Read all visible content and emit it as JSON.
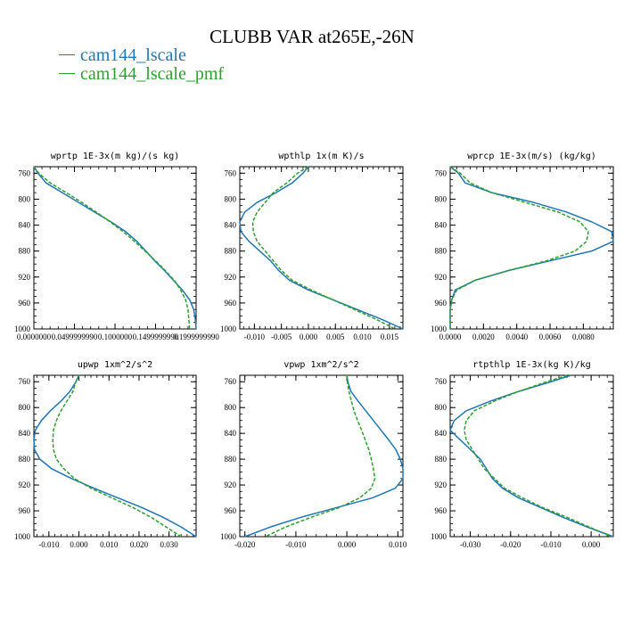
{
  "title": "CLUBB VAR at265E,-26N",
  "legend": [
    {
      "label": "cam144_lscale",
      "color": "#1f77b4"
    },
    {
      "label": "cam144_lscale_pmf",
      "color": "#2ca02c"
    }
  ],
  "chart_data": [
    {
      "type": "line",
      "title": "wprtp  1E-3x(m kg)/(s kg)",
      "ylim": [
        1000,
        750
      ],
      "yticks": [
        760,
        800,
        840,
        880,
        920,
        960,
        1000
      ],
      "xlim": [
        0.0,
        0.2
      ],
      "xticks": [
        0.0,
        0.05,
        0.1,
        0.15,
        0.2
      ],
      "xtick_labels": [
        "0.0000000",
        "0.0499999990",
        "0.1000000",
        "0.1499999990",
        "0.1999999990"
      ],
      "pressure": [
        750,
        760,
        775,
        790,
        805,
        820,
        835,
        850,
        865,
        880,
        895,
        910,
        925,
        940,
        955,
        970,
        985,
        1000
      ],
      "series": [
        {
          "name": "cam144_lscale",
          "color": "#1f77b4",
          "dash": "",
          "values": [
            0.0,
            0.005,
            0.015,
            0.035,
            0.055,
            0.075,
            0.095,
            0.113,
            0.127,
            0.138,
            0.149,
            0.161,
            0.172,
            0.183,
            0.192,
            0.197,
            0.199,
            0.2
          ]
        },
        {
          "name": "cam144_lscale_pmf",
          "color": "#2ca02c",
          "dash": "4,2",
          "values": [
            0.0,
            0.006,
            0.02,
            0.04,
            0.059,
            0.077,
            0.094,
            0.11,
            0.124,
            0.137,
            0.15,
            0.162,
            0.173,
            0.181,
            0.187,
            0.19,
            0.191,
            0.192
          ]
        }
      ]
    },
    {
      "type": "line",
      "title": "wpthlp  1x(m K)/s",
      "ylim": [
        1000,
        750
      ],
      "yticks": [
        760,
        800,
        840,
        880,
        920,
        960,
        1000
      ],
      "xlim": [
        -0.0127,
        0.0175
      ],
      "xticks": [
        -0.01,
        -0.005,
        0.0,
        0.005,
        0.01,
        0.015
      ],
      "xtick_labels": [
        "-0.010",
        "-0.005",
        "0.000",
        "0.005",
        "0.010",
        "0.015"
      ],
      "pressure": [
        750,
        760,
        775,
        790,
        805,
        820,
        835,
        850,
        865,
        880,
        895,
        910,
        925,
        940,
        955,
        970,
        985,
        1000
      ],
      "series": [
        {
          "name": "cam144_lscale",
          "color": "#1f77b4",
          "dash": "",
          "values": [
            0.0,
            -0.001,
            -0.003,
            -0.006,
            -0.0095,
            -0.0118,
            -0.0127,
            -0.0125,
            -0.011,
            -0.009,
            -0.007,
            -0.0055,
            -0.0035,
            0.0,
            0.0045,
            0.009,
            0.0135,
            0.0175
          ]
        },
        {
          "name": "cam144_lscale_pmf",
          "color": "#2ca02c",
          "dash": "4,2",
          "values": [
            0.0,
            -0.002,
            -0.004,
            -0.0065,
            -0.008,
            -0.0095,
            -0.0103,
            -0.0102,
            -0.0095,
            -0.008,
            -0.0065,
            -0.005,
            -0.003,
            0.0005,
            0.0045,
            0.0085,
            0.0125,
            0.016
          ]
        }
      ]
    },
    {
      "type": "line",
      "title": "wprcp  1E-3x(m/s) (kg/kg)",
      "ylim": [
        1000,
        750
      ],
      "yticks": [
        760,
        800,
        840,
        880,
        920,
        960,
        1000
      ],
      "xlim": [
        0.0,
        0.0098
      ],
      "xticks": [
        0.0,
        0.002,
        0.004,
        0.006,
        0.008
      ],
      "xtick_labels": [
        "0.0000",
        "0.0020",
        "0.0040",
        "0.0060",
        "0.0080"
      ],
      "pressure": [
        750,
        760,
        775,
        790,
        805,
        820,
        835,
        850,
        865,
        880,
        895,
        910,
        925,
        940,
        955,
        970,
        985,
        1000
      ],
      "series": [
        {
          "name": "cam144_lscale",
          "color": "#1f77b4",
          "dash": "",
          "values": [
            0.0,
            0.0005,
            0.0009,
            0.0025,
            0.005,
            0.007,
            0.0085,
            0.0097,
            0.0098,
            0.0085,
            0.006,
            0.0035,
            0.0015,
            0.0003,
            0.0001,
            0.0,
            0.0,
            0.0
          ]
        },
        {
          "name": "cam144_lscale_pmf",
          "color": "#2ca02c",
          "dash": "4,2",
          "values": [
            0.0,
            0.0006,
            0.0012,
            0.0025,
            0.0045,
            0.0065,
            0.0078,
            0.0083,
            0.0082,
            0.0075,
            0.0058,
            0.0035,
            0.0015,
            0.0004,
            0.0001,
            0.0,
            0.0,
            0.0
          ]
        }
      ]
    },
    {
      "type": "line",
      "title": "upwp  1xm^2/s^2",
      "ylim": [
        1000,
        750
      ],
      "yticks": [
        760,
        800,
        840,
        880,
        920,
        960,
        1000
      ],
      "xlim": [
        -0.015,
        0.039
      ],
      "xticks": [
        -0.01,
        0.0,
        0.01,
        0.02,
        0.03
      ],
      "xtick_labels": [
        "-0.010",
        "0.000",
        "0.010",
        "0.020",
        "0.030"
      ],
      "pressure": [
        750,
        760,
        775,
        790,
        805,
        820,
        835,
        850,
        865,
        880,
        895,
        910,
        925,
        940,
        955,
        970,
        985,
        1000
      ],
      "series": [
        {
          "name": "cam144_lscale",
          "color": "#1f77b4",
          "dash": "",
          "values": [
            0.0,
            -0.001,
            -0.003,
            -0.006,
            -0.0095,
            -0.0125,
            -0.0145,
            -0.015,
            -0.0148,
            -0.013,
            -0.009,
            -0.0025,
            0.005,
            0.013,
            0.021,
            0.028,
            0.034,
            0.039
          ]
        },
        {
          "name": "cam144_lscale_pmf",
          "color": "#2ca02c",
          "dash": "4,2",
          "values": [
            0.0,
            -0.001,
            -0.002,
            -0.004,
            -0.006,
            -0.0075,
            -0.0085,
            -0.0087,
            -0.0085,
            -0.0075,
            -0.005,
            -0.0015,
            0.004,
            0.011,
            0.018,
            0.024,
            0.029,
            0.034
          ]
        }
      ]
    },
    {
      "type": "line",
      "title": "vpwp  1xm^2/s^2",
      "ylim": [
        1000,
        750
      ],
      "yticks": [
        760,
        800,
        840,
        880,
        920,
        960,
        1000
      ],
      "xlim": [
        -0.021,
        0.011
      ],
      "xticks": [
        -0.02,
        -0.01,
        0.0,
        0.01
      ],
      "xtick_labels": [
        "-0.020",
        "-0.010",
        "0.000",
        "0.010"
      ],
      "pressure": [
        750,
        760,
        775,
        790,
        805,
        820,
        835,
        850,
        865,
        880,
        895,
        910,
        925,
        940,
        955,
        970,
        985,
        1000
      ],
      "series": [
        {
          "name": "cam144_lscale",
          "color": "#1f77b4",
          "dash": "",
          "values": [
            0.0,
            0.0002,
            0.0008,
            0.0022,
            0.0037,
            0.0052,
            0.0067,
            0.0082,
            0.0096,
            0.0105,
            0.011,
            0.011,
            0.0095,
            0.005,
            -0.002,
            -0.009,
            -0.015,
            -0.02
          ]
        },
        {
          "name": "cam144_lscale_pmf",
          "color": "#2ca02c",
          "dash": "4,2",
          "values": [
            0.0,
            0.0001,
            0.0004,
            0.0009,
            0.0014,
            0.0021,
            0.0029,
            0.0036,
            0.0043,
            0.0048,
            0.0052,
            0.0055,
            0.0048,
            0.0025,
            -0.0015,
            -0.007,
            -0.012,
            -0.016
          ]
        }
      ]
    },
    {
      "type": "line",
      "title": "rtpthlp  1E-3x(kg K)/kg",
      "ylim": [
        1000,
        750
      ],
      "yticks": [
        760,
        800,
        840,
        880,
        920,
        960,
        1000
      ],
      "xlim": [
        -0.035,
        0.0055
      ],
      "xticks": [
        -0.03,
        -0.02,
        -0.01,
        0.0
      ],
      "xtick_labels": [
        "-0.030",
        "-0.020",
        "-0.010",
        "0.000"
      ],
      "pressure": [
        750,
        760,
        775,
        790,
        805,
        820,
        835,
        850,
        865,
        880,
        895,
        910,
        925,
        940,
        955,
        970,
        985,
        1000
      ],
      "series": [
        {
          "name": "cam144_lscale",
          "color": "#1f77b4",
          "dash": "",
          "values": [
            -0.005,
            -0.01,
            -0.018,
            -0.025,
            -0.031,
            -0.034,
            -0.035,
            -0.0325,
            -0.03,
            -0.0275,
            -0.026,
            -0.0245,
            -0.022,
            -0.018,
            -0.0125,
            -0.007,
            -0.001,
            0.0055
          ]
        },
        {
          "name": "cam144_lscale_pmf",
          "color": "#2ca02c",
          "dash": "4,2",
          "values": [
            -0.006,
            -0.011,
            -0.018,
            -0.024,
            -0.029,
            -0.031,
            -0.0315,
            -0.031,
            -0.0295,
            -0.028,
            -0.0265,
            -0.024,
            -0.0215,
            -0.017,
            -0.012,
            -0.006,
            -0.0005,
            0.005
          ]
        }
      ]
    }
  ]
}
